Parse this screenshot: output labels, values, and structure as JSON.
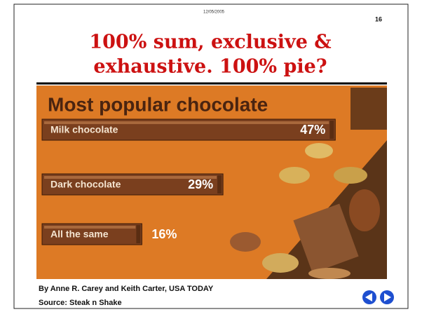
{
  "slide": {
    "date": "12/05/2005",
    "page_number": "16",
    "title_lines": [
      "100% sum, exclusive &",
      "exhaustive.  100% pie?"
    ]
  },
  "chart_data": {
    "type": "bar",
    "orientation": "horizontal",
    "title": "Most popular chocolate",
    "categories": [
      "Milk chocolate",
      "Dark chocolate",
      "All the same"
    ],
    "values": [
      47,
      29,
      16
    ],
    "value_labels": [
      "47%",
      "29%",
      "16%"
    ],
    "color": "#7a3f1e"
  },
  "credits": [
    "By Anne R. Carey and Keith Carter, USA TODAY",
    "Source: Steak n Shake"
  ]
}
